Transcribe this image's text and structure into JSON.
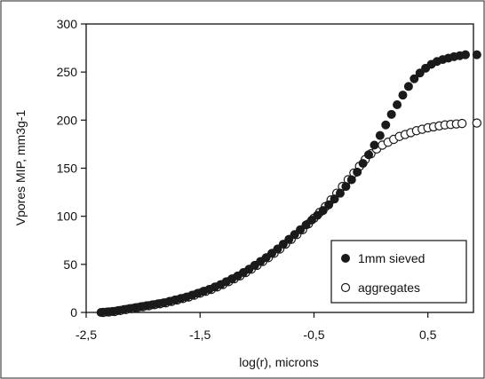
{
  "chart_data": {
    "type": "scatter",
    "title": "",
    "xlabel": "log(r), microns",
    "ylabel": "Vpores MIP, mm3g-1",
    "xlim": [
      -2.5,
      0.9
    ],
    "ylim": [
      0,
      300
    ],
    "xticks": [
      -2.5,
      -1.5,
      -0.5,
      0.5
    ],
    "xtick_labels": [
      "-2,5",
      "-1,5",
      "-0,5",
      "0,5"
    ],
    "yticks": [
      0,
      50,
      100,
      150,
      200,
      250,
      300
    ],
    "ytick_labels": [
      "0",
      "50",
      "100",
      "150",
      "200",
      "250",
      "300"
    ],
    "grid": false,
    "legend_position": "bottom-right",
    "series": [
      {
        "name": "1mm sieved",
        "marker": "filled-circle",
        "color": "#1a1a1a",
        "x": [
          -2.37,
          -2.32,
          -2.27,
          -2.22,
          -2.17,
          -2.12,
          -2.07,
          -2.02,
          -1.97,
          -1.92,
          -1.87,
          -1.82,
          -1.77,
          -1.72,
          -1.67,
          -1.62,
          -1.57,
          -1.52,
          -1.47,
          -1.42,
          -1.37,
          -1.32,
          -1.27,
          -1.22,
          -1.17,
          -1.12,
          -1.07,
          -1.02,
          -0.97,
          -0.92,
          -0.87,
          -0.82,
          -0.77,
          -0.72,
          -0.67,
          -0.62,
          -0.57,
          -0.52,
          -0.47,
          -0.42,
          -0.37,
          -0.32,
          -0.27,
          -0.22,
          -0.17,
          -0.12,
          -0.07,
          -0.02,
          0.03,
          0.08,
          0.13,
          0.18,
          0.23,
          0.28,
          0.33,
          0.38,
          0.43,
          0.48,
          0.53,
          0.58,
          0.63,
          0.68,
          0.73,
          0.78,
          0.83,
          0.93
        ],
        "y": [
          0,
          0.5,
          1,
          2,
          3,
          4,
          5,
          6,
          7,
          8,
          9,
          10,
          11.5,
          13,
          14.5,
          16,
          18,
          20,
          22,
          24,
          26.5,
          29,
          32,
          35,
          38,
          41.5,
          45,
          49,
          53,
          57,
          61.5,
          66,
          71,
          76,
          81,
          86,
          91,
          96,
          101,
          106,
          112,
          118,
          124,
          131,
          138,
          146,
          155,
          164,
          174,
          184,
          195,
          206,
          216,
          226,
          235,
          243,
          249,
          254,
          258,
          261,
          263,
          264.5,
          266,
          267,
          268,
          268
        ]
      },
      {
        "name": "aggregates",
        "marker": "open-circle",
        "color": "#1a1a1a",
        "x": [
          -2.35,
          -2.3,
          -2.25,
          -2.2,
          -2.15,
          -2.1,
          -2.05,
          -2.0,
          -1.95,
          -1.9,
          -1.85,
          -1.8,
          -1.75,
          -1.7,
          -1.65,
          -1.6,
          -1.55,
          -1.5,
          -1.45,
          -1.4,
          -1.35,
          -1.3,
          -1.25,
          -1.2,
          -1.15,
          -1.1,
          -1.05,
          -1.0,
          -0.95,
          -0.9,
          -0.85,
          -0.8,
          -0.75,
          -0.7,
          -0.65,
          -0.6,
          -0.55,
          -0.5,
          -0.45,
          -0.4,
          -0.35,
          -0.3,
          -0.25,
          -0.2,
          -0.15,
          -0.1,
          -0.05,
          0.0,
          0.05,
          0.1,
          0.15,
          0.2,
          0.25,
          0.3,
          0.35,
          0.4,
          0.45,
          0.5,
          0.55,
          0.6,
          0.65,
          0.7,
          0.75,
          0.8,
          0.93
        ],
        "y": [
          0,
          0.5,
          1,
          2,
          3,
          4,
          5,
          6,
          7,
          8,
          9,
          10,
          11.5,
          13,
          14.5,
          16,
          18,
          20,
          22,
          24,
          26.5,
          29,
          32,
          35,
          38,
          41.5,
          45,
          49,
          53,
          57,
          61.5,
          66,
          71,
          76,
          81,
          86,
          92,
          98,
          104,
          110,
          117,
          124,
          131,
          138,
          145,
          152,
          159,
          165,
          170,
          174,
          177,
          180,
          183,
          185,
          187,
          189,
          190.5,
          192,
          193,
          194,
          195,
          195.5,
          196,
          196.5,
          197
        ]
      }
    ]
  }
}
